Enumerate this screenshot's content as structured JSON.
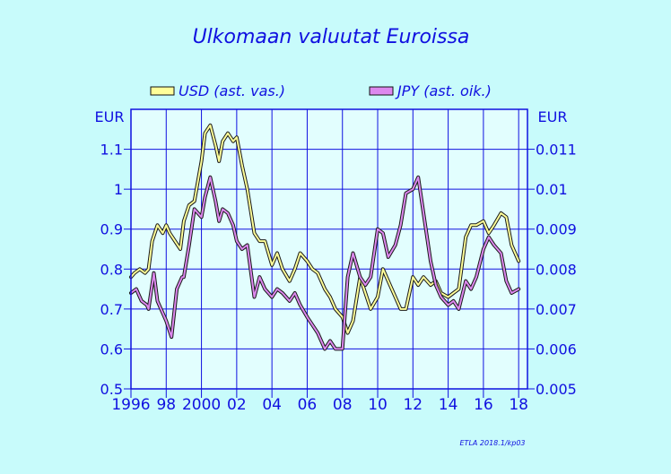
{
  "chart_data": {
    "type": "line",
    "title": "Ulkomaan  valuutat  Euroissa",
    "credit": "ETLA 2018.1/kp03",
    "left_axis": {
      "unit": "EUR",
      "ylim": [
        0.5,
        1.2
      ],
      "ticks": [
        0.5,
        0.6,
        0.7,
        0.8,
        0.9,
        1.0,
        1.1
      ],
      "tick_labels": [
        "0.5",
        "0.6",
        "0.7",
        "0.8",
        "0.9",
        "1",
        "1.1"
      ]
    },
    "right_axis": {
      "unit": "EUR",
      "ylim": [
        0.005,
        0.012
      ],
      "ticks": [
        0.005,
        0.006,
        0.007,
        0.008,
        0.009,
        0.01,
        0.011
      ],
      "tick_labels": [
        "0.005",
        "0.006",
        "0.007",
        "0.008",
        "0.009",
        "0.01",
        "0.011"
      ]
    },
    "x_axis": {
      "xlim": [
        1996,
        2018.5
      ],
      "ticks": [
        1996,
        1998,
        2000,
        2002,
        2004,
        2006,
        2008,
        2010,
        2012,
        2014,
        2016,
        2018
      ],
      "tick_labels": [
        "1996",
        "98",
        "2000",
        "02",
        "04",
        "06",
        "08",
        "10",
        "12",
        "14",
        "16",
        "18"
      ],
      "grid": true
    },
    "legend_position": "top",
    "series": [
      {
        "name": "USD (ast. vas.)",
        "axis": "left",
        "color": "#ffff99",
        "x": [
          1996,
          1996.2,
          1996.5,
          1996.8,
          1997,
          1997.2,
          1997.5,
          1997.8,
          1998,
          1998.2,
          1998.5,
          1998.8,
          1999,
          1999.3,
          1999.6,
          2000,
          2000.2,
          2000.5,
          2000.8,
          2001,
          2001.2,
          2001.5,
          2001.8,
          2002,
          2002.3,
          2002.6,
          2003,
          2003.3,
          2003.6,
          2004,
          2004.3,
          2004.6,
          2005,
          2005.3,
          2005.6,
          2006,
          2006.3,
          2006.6,
          2007,
          2007.3,
          2007.6,
          2008,
          2008.3,
          2008.6,
          2009,
          2009.3,
          2009.6,
          2010,
          2010.3,
          2010.6,
          2011,
          2011.3,
          2011.6,
          2012,
          2012.3,
          2012.6,
          2013,
          2013.3,
          2013.6,
          2014,
          2014.3,
          2014.6,
          2015,
          2015.3,
          2015.6,
          2016,
          2016.3,
          2016.6,
          2017,
          2017.3,
          2017.6,
          2018
        ],
        "values": [
          0.78,
          0.79,
          0.8,
          0.79,
          0.8,
          0.87,
          0.91,
          0.89,
          0.91,
          0.89,
          0.87,
          0.85,
          0.92,
          0.96,
          0.97,
          1.07,
          1.14,
          1.16,
          1.11,
          1.07,
          1.12,
          1.14,
          1.12,
          1.13,
          1.06,
          1.0,
          0.89,
          0.87,
          0.87,
          0.81,
          0.84,
          0.8,
          0.77,
          0.8,
          0.84,
          0.82,
          0.8,
          0.79,
          0.75,
          0.73,
          0.7,
          0.68,
          0.64,
          0.67,
          0.78,
          0.74,
          0.7,
          0.73,
          0.8,
          0.77,
          0.73,
          0.7,
          0.7,
          0.78,
          0.76,
          0.78,
          0.76,
          0.77,
          0.74,
          0.73,
          0.74,
          0.75,
          0.88,
          0.91,
          0.91,
          0.92,
          0.89,
          0.91,
          0.94,
          0.93,
          0.86,
          0.82
        ]
      },
      {
        "name": "JPY (ast. oik.)",
        "axis": "right",
        "color": "#dd88ee",
        "x": [
          1996,
          1996.3,
          1996.6,
          1996.9,
          1997,
          1997.3,
          1997.5,
          1997.8,
          1998,
          1998.3,
          1998.6,
          1998.9,
          1999,
          1999.3,
          1999.6,
          2000,
          2000.2,
          2000.5,
          2000.8,
          2001,
          2001.2,
          2001.5,
          2001.8,
          2002,
          2002.3,
          2002.6,
          2003,
          2003.3,
          2003.6,
          2004,
          2004.3,
          2004.6,
          2005,
          2005.3,
          2005.6,
          2006,
          2006.3,
          2006.6,
          2007,
          2007.3,
          2007.6,
          2008,
          2008.3,
          2008.6,
          2009,
          2009.3,
          2009.6,
          2010,
          2010.3,
          2010.6,
          2011,
          2011.3,
          2011.6,
          2012,
          2012.3,
          2012.6,
          2013,
          2013.3,
          2013.6,
          2014,
          2014.3,
          2014.6,
          2015,
          2015.3,
          2015.6,
          2016,
          2016.3,
          2016.6,
          2017,
          2017.3,
          2017.6,
          2018
        ],
        "values": [
          0.0074,
          0.0075,
          0.0072,
          0.0071,
          0.007,
          0.0079,
          0.0072,
          0.0069,
          0.0067,
          0.0063,
          0.0075,
          0.0078,
          0.0078,
          0.0086,
          0.0095,
          0.0093,
          0.0098,
          0.0103,
          0.0097,
          0.0092,
          0.0095,
          0.0094,
          0.0091,
          0.0087,
          0.0085,
          0.0086,
          0.0073,
          0.0078,
          0.0075,
          0.0073,
          0.0075,
          0.0074,
          0.0072,
          0.0074,
          0.0071,
          0.0068,
          0.0066,
          0.0064,
          0.006,
          0.0062,
          0.006,
          0.006,
          0.0078,
          0.0084,
          0.0078,
          0.0076,
          0.0078,
          0.009,
          0.0089,
          0.0083,
          0.0086,
          0.0091,
          0.0099,
          0.01,
          0.0103,
          0.0094,
          0.0082,
          0.0076,
          0.0073,
          0.0071,
          0.0072,
          0.007,
          0.0077,
          0.0075,
          0.0078,
          0.0085,
          0.0088,
          0.0086,
          0.0084,
          0.0077,
          0.0074,
          0.0075
        ]
      }
    ]
  }
}
